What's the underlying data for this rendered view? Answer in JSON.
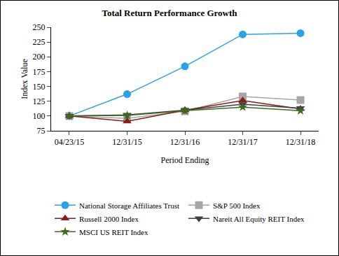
{
  "chart_data": {
    "type": "line",
    "title": "Total Return Performance Growth",
    "x_label": "Period Ending",
    "y_label": "Index Value",
    "categories": [
      "04/23/15",
      "12/31/15",
      "12/31/16",
      "12/31/17",
      "12/31/18"
    ],
    "series": [
      {
        "name": "National Storage Affiliates Trust",
        "color": "#29a3e8",
        "marker": "circle",
        "values": [
          100,
          137,
          184,
          238,
          240
        ]
      },
      {
        "name": "S&P 500 Index",
        "color": "#a6a6a6",
        "marker": "square",
        "values": [
          100,
          96,
          108,
          133,
          127
        ]
      },
      {
        "name": "Russell 2000 Index",
        "color": "#8b1a1a",
        "marker": "triangle-up",
        "values": [
          100,
          91,
          110,
          126,
          112
        ]
      },
      {
        "name": "Nareit All Equity REIT Index",
        "color": "#404040",
        "marker": "triangle-down",
        "values": [
          100,
          102,
          110,
          120,
          113
        ]
      },
      {
        "name": "MSCI US REIT Index",
        "color": "#3a6e1e",
        "marker": "star",
        "values": [
          100,
          101,
          109,
          115,
          109
        ]
      }
    ],
    "ylim": [
      75,
      250
    ],
    "yticks": [
      75,
      100,
      125,
      150,
      175,
      200,
      225,
      250
    ],
    "grid": false,
    "legend": "bottom"
  }
}
